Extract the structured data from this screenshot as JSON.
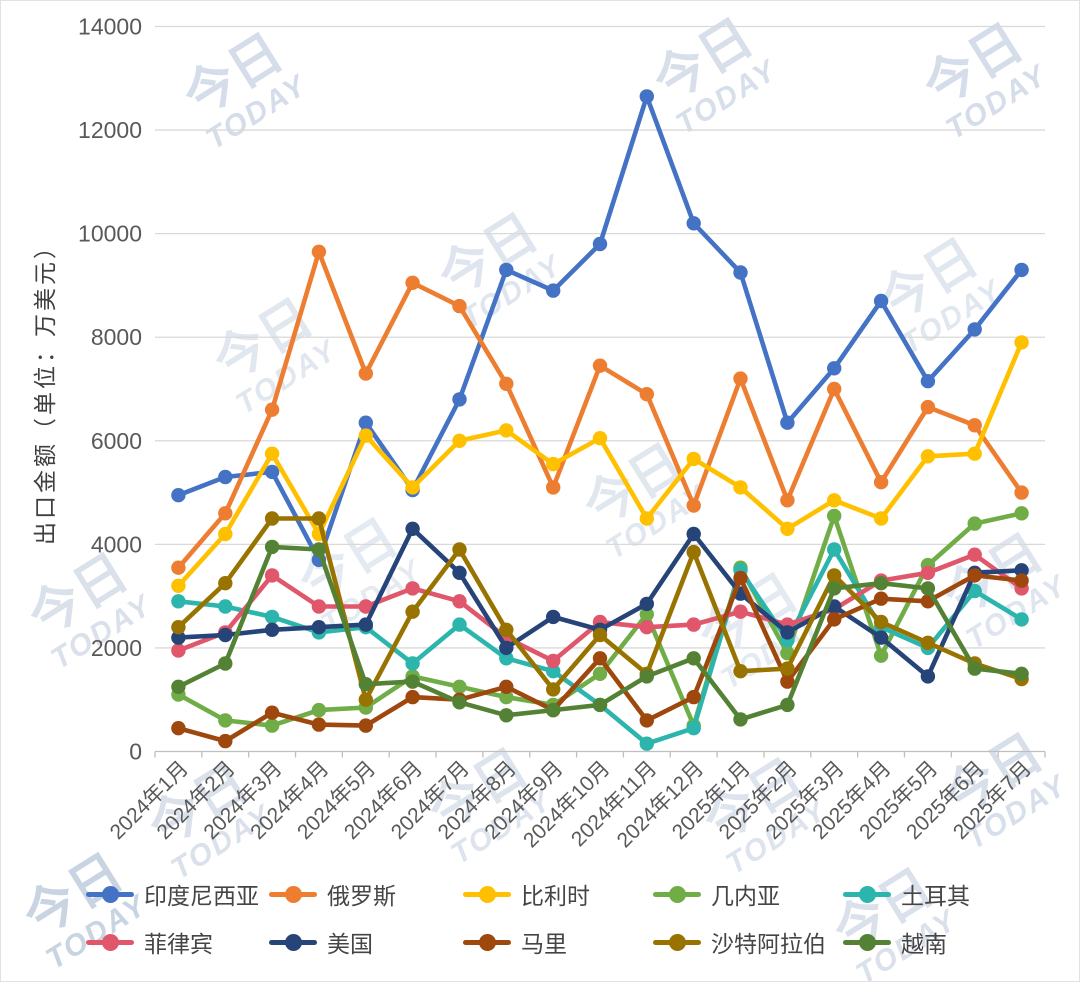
{
  "chart_data": {
    "type": "line",
    "title": "",
    "xlabel": "",
    "ylabel": "出口金额（单位：万美元）",
    "ylim": [
      0,
      14000
    ],
    "ytick_step": 2000,
    "y_tick_labels": [
      "0",
      "2000",
      "4000",
      "6000",
      "8000",
      "10000",
      "12000",
      "14000"
    ],
    "grid": true,
    "legend_position": "bottom",
    "categories": [
      "2024年1月",
      "2024年2月",
      "2024年3月",
      "2024年4月",
      "2024年5月",
      "2024年6月",
      "2024年7月",
      "2024年8月",
      "2024年9月",
      "2024年10月",
      "2024年11月",
      "2024年12月",
      "2025年1月",
      "2025年2月",
      "2025年3月",
      "2025年4月",
      "2025年5月",
      "2025年6月",
      "2025年7月"
    ],
    "series": [
      {
        "name": "印度尼西亚",
        "color": "#4472C4",
        "values": [
          4950,
          5300,
          5400,
          3700,
          6350,
          5050,
          6800,
          9300,
          8900,
          9800,
          12650,
          10200,
          9250,
          6350,
          7400,
          8700,
          7150,
          8150,
          9300
        ]
      },
      {
        "name": "俄罗斯",
        "color": "#ED7D31",
        "values": [
          3550,
          4600,
          6600,
          9650,
          7300,
          9050,
          8600,
          7100,
          5100,
          7450,
          6900,
          4750,
          7200,
          4850,
          7000,
          5200,
          6650,
          6300,
          5000
        ]
      },
      {
        "name": "比利时",
        "color": "#FFC000",
        "values": [
          3200,
          4200,
          5750,
          4200,
          6100,
          5100,
          6000,
          6200,
          5550,
          6050,
          4500,
          5650,
          5100,
          4300,
          4850,
          4500,
          5700,
          5750,
          7900
        ]
      },
      {
        "name": "几内亚",
        "color": "#70AD47",
        "values": [
          1100,
          600,
          500,
          800,
          850,
          1450,
          1250,
          1050,
          900,
          1500,
          2650,
          500,
          3550,
          1900,
          4550,
          1850,
          3600,
          4400,
          4600
        ]
      },
      {
        "name": "土耳其",
        "color": "#2CB5AC",
        "values": [
          2900,
          2800,
          2600,
          2300,
          2400,
          1700,
          2450,
          1800,
          1550,
          900,
          150,
          450,
          3500,
          2150,
          3900,
          2400,
          2000,
          3100,
          2550
        ]
      },
      {
        "name": "菲律宾",
        "color": "#E0566B",
        "values": [
          1950,
          2300,
          3400,
          2800,
          2800,
          3150,
          2900,
          2200,
          1750,
          2500,
          2400,
          2450,
          2700,
          2450,
          2750,
          3300,
          3450,
          3800,
          3150
        ]
      },
      {
        "name": "美国",
        "color": "#264478",
        "values": [
          2200,
          2250,
          2350,
          2400,
          2450,
          4300,
          3450,
          2000,
          2600,
          2350,
          2850,
          4200,
          3050,
          2300,
          2800,
          2200,
          1450,
          3450,
          3500
        ]
      },
      {
        "name": "马里",
        "color": "#9E480E",
        "values": [
          450,
          200,
          750,
          520,
          500,
          1050,
          1000,
          1250,
          800,
          1800,
          600,
          1050,
          3350,
          1350,
          2550,
          2950,
          2900,
          3400,
          3300
        ]
      },
      {
        "name": "沙特阿拉伯",
        "color": "#997300",
        "values": [
          2400,
          3250,
          4500,
          4500,
          1000,
          2700,
          3900,
          2350,
          1200,
          2250,
          1500,
          3850,
          1550,
          1600,
          3400,
          2500,
          2100,
          1700,
          1400
        ]
      },
      {
        "name": "越南",
        "color": "#548235",
        "values": [
          1250,
          1700,
          3950,
          3900,
          1300,
          1350,
          950,
          700,
          800,
          900,
          1450,
          1800,
          620,
          900,
          3150,
          3250,
          3150,
          1600,
          1500
        ]
      }
    ]
  },
  "watermark": {
    "cn": "今日",
    "en": "TODAY"
  },
  "axis_colors": {
    "tick_text": "#595959",
    "gridline": "#d9d9d9",
    "axis_line": "#bfbfbf"
  }
}
